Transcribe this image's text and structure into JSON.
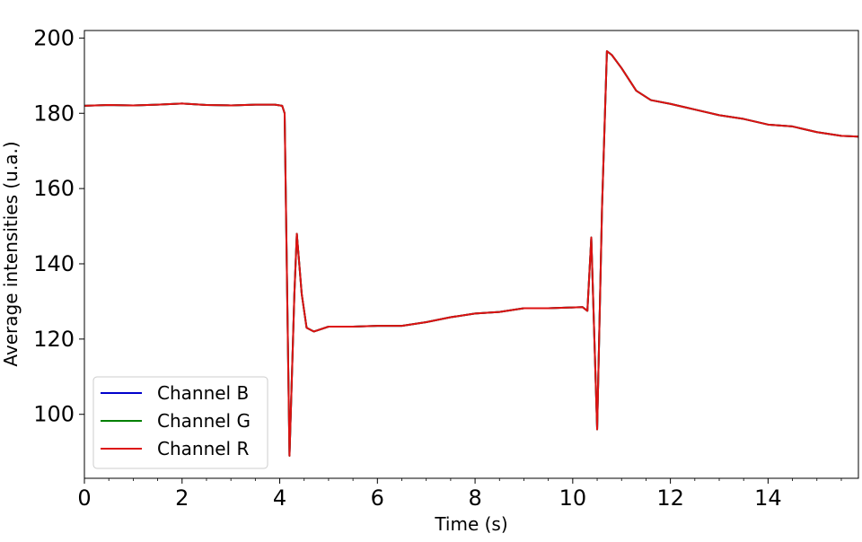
{
  "chart_data": {
    "type": "line",
    "title": "",
    "xlabel": "Time (s)",
    "ylabel": "Average intensities (u.a.)",
    "xlim": [
      0,
      15.85
    ],
    "ylim": [
      83,
      202
    ],
    "xticks": [
      0,
      2,
      4,
      6,
      8,
      10,
      12,
      14
    ],
    "xtick_labels": [
      "0",
      "2",
      "4",
      "6",
      "8",
      "10",
      "12",
      "14"
    ],
    "yticks": [
      100,
      120,
      140,
      160,
      180,
      200
    ],
    "ytick_labels": [
      "100",
      "120",
      "140",
      "160",
      "180",
      "200"
    ],
    "grid": false,
    "legend_position": "lower-left",
    "series": [
      {
        "name": "Channel B",
        "color": "#0000cc",
        "x": [
          0,
          0.5,
          1.0,
          1.5,
          2.0,
          2.5,
          3.0,
          3.5,
          3.9,
          4.05,
          4.1,
          4.2,
          4.3,
          4.35,
          4.45,
          4.55,
          4.7,
          5.0,
          5.5,
          6.0,
          6.5,
          7.0,
          7.5,
          8.0,
          8.5,
          9.0,
          9.5,
          10.0,
          10.2,
          10.3,
          10.38,
          10.5,
          10.6,
          10.7,
          10.8,
          11.0,
          11.3,
          11.6,
          12.0,
          12.5,
          13.0,
          13.5,
          14.0,
          14.5,
          15.0,
          15.5,
          15.85
        ],
        "y": [
          182,
          182.2,
          182.1,
          182.3,
          182.6,
          182.2,
          182.1,
          182.3,
          182.3,
          182,
          180,
          89,
          132,
          148,
          132,
          123,
          122,
          123.3,
          123.3,
          123.5,
          123.5,
          124.5,
          125.8,
          126.8,
          127.2,
          128.2,
          128.2,
          128.4,
          128.5,
          127.5,
          147,
          96,
          155,
          196.5,
          195.5,
          192,
          186,
          183.5,
          182.5,
          181,
          179.5,
          178.5,
          177,
          176.5,
          175,
          174,
          173.8
        ]
      },
      {
        "name": "Channel G",
        "color": "#008000",
        "x": [
          0,
          0.5,
          1.0,
          1.5,
          2.0,
          2.5,
          3.0,
          3.5,
          3.9,
          4.05,
          4.1,
          4.2,
          4.3,
          4.35,
          4.45,
          4.55,
          4.7,
          5.0,
          5.5,
          6.0,
          6.5,
          7.0,
          7.5,
          8.0,
          8.5,
          9.0,
          9.5,
          10.0,
          10.2,
          10.3,
          10.38,
          10.5,
          10.6,
          10.7,
          10.8,
          11.0,
          11.3,
          11.6,
          12.0,
          12.5,
          13.0,
          13.5,
          14.0,
          14.5,
          15.0,
          15.5,
          15.85
        ],
        "y": [
          182,
          182.2,
          182.1,
          182.3,
          182.6,
          182.2,
          182.1,
          182.3,
          182.3,
          182,
          180,
          89,
          132,
          148,
          132,
          123,
          122,
          123.3,
          123.3,
          123.5,
          123.5,
          124.5,
          125.8,
          126.8,
          127.2,
          128.2,
          128.2,
          128.4,
          128.5,
          127.5,
          147,
          96,
          155,
          196.5,
          195.5,
          192,
          186,
          183.5,
          182.5,
          181,
          179.5,
          178.5,
          177,
          176.5,
          175,
          174,
          173.8
        ]
      },
      {
        "name": "Channel R",
        "color": "#dd1111",
        "x": [
          0,
          0.5,
          1.0,
          1.5,
          2.0,
          2.5,
          3.0,
          3.5,
          3.9,
          4.05,
          4.1,
          4.2,
          4.3,
          4.35,
          4.45,
          4.55,
          4.7,
          5.0,
          5.5,
          6.0,
          6.5,
          7.0,
          7.5,
          8.0,
          8.5,
          9.0,
          9.5,
          10.0,
          10.2,
          10.3,
          10.38,
          10.5,
          10.6,
          10.7,
          10.8,
          11.0,
          11.3,
          11.6,
          12.0,
          12.5,
          13.0,
          13.5,
          14.0,
          14.5,
          15.0,
          15.5,
          15.85
        ],
        "y": [
          182,
          182.2,
          182.1,
          182.3,
          182.6,
          182.2,
          182.1,
          182.3,
          182.3,
          182,
          180,
          89,
          132,
          148,
          132,
          123,
          122,
          123.3,
          123.3,
          123.5,
          123.5,
          124.5,
          125.8,
          126.8,
          127.2,
          128.2,
          128.2,
          128.4,
          128.5,
          127.5,
          147,
          96,
          155,
          196.5,
          195.5,
          192,
          186,
          183.5,
          182.5,
          181,
          179.5,
          178.5,
          177,
          176.5,
          175,
          174,
          173.8
        ]
      }
    ]
  }
}
